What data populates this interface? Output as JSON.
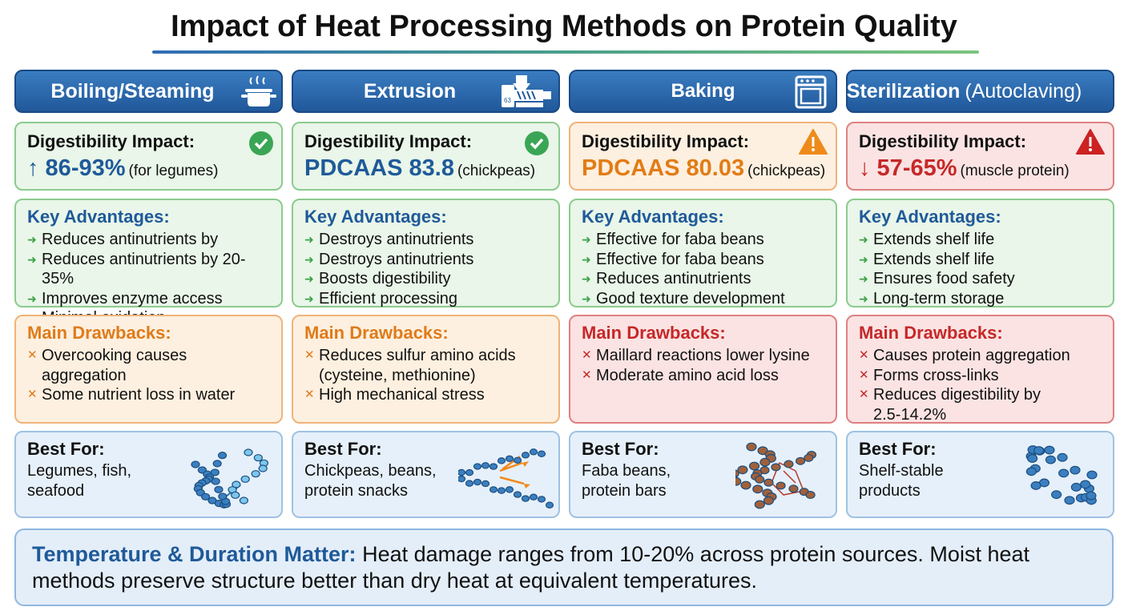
{
  "title": "Impact of Heat Processing Methods on Protein Quality",
  "columns": [
    {
      "header": "Boiling/Steaming",
      "digestibility": {
        "label": "Digestibility Impact:",
        "value": "↑ 86-93%",
        "note": "(for legumes)"
      },
      "advantages": {
        "title": "Key Advantages:",
        "items": [
          "Reduces antinutrients by",
          "Reduces antinutrients by 20-35%",
          "Improves enzyme access",
          "Minimal oxidation"
        ]
      },
      "drawbacks": {
        "title": "Main Drawbacks:",
        "items": [
          "Overcooking causes aggregation",
          "Some nutrient loss in water"
        ]
      },
      "best_for": {
        "title": "Best For:",
        "lines": [
          "Legumes, fish,",
          "seafood"
        ]
      }
    },
    {
      "header": "Extrusion",
      "digestibility": {
        "label": "Digestibility Impact:",
        "value": "PDCAAS 83.8",
        "note": "(chickpeas)"
      },
      "advantages": {
        "title": "Key Advantages:",
        "items": [
          "Destroys antinutrients",
          "Destroys antinutrients",
          "Boosts digestibility",
          "Efficient processing"
        ]
      },
      "drawbacks": {
        "title": "Main Drawbacks:",
        "items": [
          "Reduces sulfur amino acids (cysteine, methionine)",
          "High mechanical stress"
        ]
      },
      "best_for": {
        "title": "Best For:",
        "lines": [
          "Chickpeas, beans,",
          "protein snacks"
        ]
      }
    },
    {
      "header": "Baking",
      "digestibility": {
        "label": "Digestibility Impact:",
        "value": "PDCAAS 80.03",
        "note": "(chickpeas)"
      },
      "advantages": {
        "title": "Key Advantages:",
        "items": [
          "Effective for faba beans",
          "Effective for faba beans",
          "Reduces antinutrients",
          "Good texture development"
        ]
      },
      "drawbacks": {
        "title": "Main Drawbacks:",
        "items": [
          "Maillard reactions lower lysine",
          "Moderate amino acid loss"
        ]
      },
      "best_for": {
        "title": "Best For:",
        "lines": [
          "Faba beans,",
          "protein bars"
        ]
      }
    },
    {
      "header": "Sterilization",
      "header_note": "(Autoclaving)",
      "digestibility": {
        "label": "Digestibility Impact:",
        "value": "↓ 57-65%",
        "note": "(muscle protein)"
      },
      "advantages": {
        "title": "Key Advantages:",
        "items": [
          "Extends shelf life",
          "Extends shelf life",
          "Ensures food safety",
          "Long-term storage"
        ]
      },
      "drawbacks": {
        "title": "Main Drawbacks:",
        "items": [
          "Causes protein aggregation",
          "Forms cross-links",
          "Reduces digestibility by 2.5-14.2%"
        ]
      },
      "best_for": {
        "title": "Best For:",
        "lines": [
          "Shelf-stable",
          "products"
        ]
      }
    }
  ],
  "footer": {
    "lead": "Temperature & Duration Matter:",
    "text": "Heat damage ranges from 10-20% across protein sources. Moist heat methods preserve structure better than dry heat at equivalent temperatures."
  }
}
